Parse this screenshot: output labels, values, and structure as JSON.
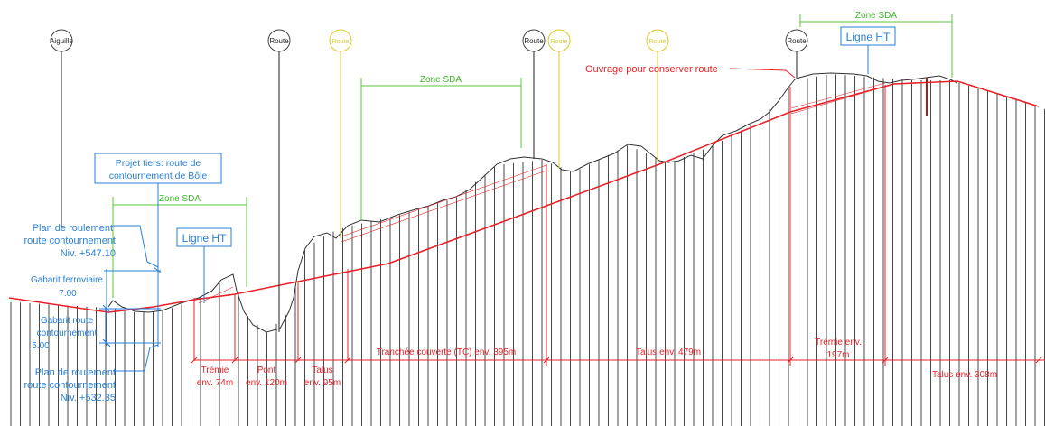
{
  "colors": {
    "route_line": "#e8222a",
    "terrain": "#333333",
    "zone": "#5ac83a",
    "annotation": "#2a7fd4",
    "marker_yellow": "#d8cc2a",
    "hatch": "#1a1a1a"
  },
  "markers": {
    "aiguille": "Aiguille",
    "route1": "Route",
    "route_y1": "Route",
    "route2": "Route",
    "route_y2": "Route",
    "route_y3": "Route",
    "route3": "Route"
  },
  "zones": {
    "left": "Zone SDA",
    "mid": "Zone SDA",
    "right": "Zone SDA"
  },
  "ligne_ht": {
    "left": "Ligne HT",
    "right": "Ligne HT"
  },
  "projet_tiers": {
    "line1": "Projet tiers: route de",
    "line2": "contournement de Bôle"
  },
  "plan_top": {
    "line1": "Plan de roulement",
    "line2": "route contournement",
    "line3": "Niv. +547.10"
  },
  "gabarit_ferro": {
    "line1": "Gabarit ferroviaire",
    "line2": "7.00"
  },
  "gabarit_route": {
    "line1": "Gabarit route",
    "line2": "contournement",
    "line3": "5.00"
  },
  "plan_bottom": {
    "line1": "Plan de roulement",
    "line2": "route contournement",
    "line3": "Niv. +532.35"
  },
  "ouvrage": "Ouvrage pour conserver route",
  "segments": {
    "tremie1_a": "Trémie",
    "tremie1_b": "env. 74m",
    "pont_a": "Pont",
    "pont_b": "env. 120m",
    "talus1_a": "Talus",
    "talus1_b": "env. 95m",
    "tranchee": "Tranchée couverte (TC) env. 395m",
    "talus2": "Talus env. 479m",
    "tremie2_a": "Trémie env.",
    "tremie2_b": "197m",
    "talus3": "Talus env. 308m"
  }
}
